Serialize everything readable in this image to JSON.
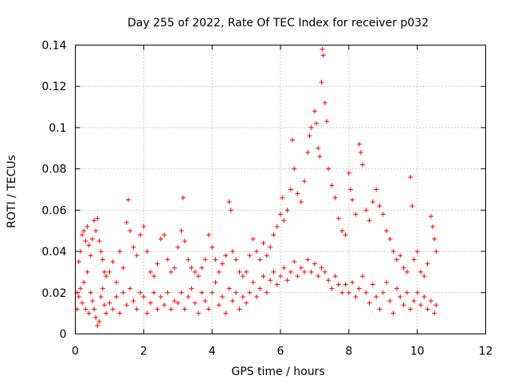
{
  "chart_data": {
    "type": "scatter",
    "title": "Day 255 of 2022, Rate Of TEC Index for receiver p032",
    "xlabel": "GPS time / hours",
    "ylabel": "ROTI / TECUs",
    "xlim": [
      0,
      12
    ],
    "ylim": [
      0,
      0.14
    ],
    "xticks": [
      0,
      2,
      4,
      6,
      8,
      10,
      12
    ],
    "yticks": [
      0,
      0.02,
      0.04,
      0.06,
      0.08,
      0.1,
      0.12,
      0.14
    ],
    "xtick_labels": [
      "0",
      "2",
      "4",
      "6",
      "8",
      "10",
      "12"
    ],
    "ytick_labels": [
      "0",
      "0.02",
      "0.04",
      "0.06",
      "0.08",
      "0.1",
      "0.12",
      "0.14"
    ],
    "grid": true,
    "marker": "+",
    "color": "#ff0000",
    "series": [
      {
        "name": "p032",
        "points": [
          [
            0.05,
            0.012
          ],
          [
            0.1,
            0.035
          ],
          [
            0.15,
            0.04
          ],
          [
            0.2,
            0.048
          ],
          [
            0.25,
            0.05
          ],
          [
            0.3,
            0.045
          ],
          [
            0.35,
            0.052
          ],
          [
            0.4,
            0.043
          ],
          [
            0.45,
            0.038
          ],
          [
            0.5,
            0.046
          ],
          [
            0.55,
            0.055
          ],
          [
            0.6,
            0.05
          ],
          [
            0.65,
            0.056
          ],
          [
            0.7,
            0.045
          ],
          [
            0.75,
            0.04
          ],
          [
            0.8,
            0.036
          ],
          [
            0.85,
            0.03
          ],
          [
            0.9,
            0.028
          ],
          [
            0.05,
            0.02
          ],
          [
            0.1,
            0.018
          ],
          [
            0.15,
            0.022
          ],
          [
            0.2,
            0.015
          ],
          [
            0.25,
            0.025
          ],
          [
            0.3,
            0.012
          ],
          [
            0.35,
            0.03
          ],
          [
            0.4,
            0.01
          ],
          [
            0.45,
            0.02
          ],
          [
            0.5,
            0.016
          ],
          [
            0.55,
            0.012
          ],
          [
            0.6,
            0.008
          ],
          [
            0.65,
            0.004
          ],
          [
            0.7,
            0.006
          ],
          [
            0.75,
            0.018
          ],
          [
            0.8,
            0.022
          ],
          [
            0.85,
            0.014
          ],
          [
            0.9,
            0.01
          ],
          [
            1.0,
            0.03
          ],
          [
            1.1,
            0.035
          ],
          [
            1.2,
            0.025
          ],
          [
            1.3,
            0.04
          ],
          [
            1.4,
            0.032
          ],
          [
            1.5,
            0.054
          ],
          [
            1.55,
            0.065
          ],
          [
            1.6,
            0.05
          ],
          [
            1.7,
            0.042
          ],
          [
            1.8,
            0.038
          ],
          [
            1.9,
            0.048
          ],
          [
            2.0,
            0.052
          ],
          [
            2.1,
            0.04
          ],
          [
            2.2,
            0.03
          ],
          [
            2.3,
            0.028
          ],
          [
            2.4,
            0.034
          ],
          [
            2.5,
            0.046
          ],
          [
            2.6,
            0.048
          ],
          [
            2.7,
            0.036
          ],
          [
            2.8,
            0.03
          ],
          [
            2.9,
            0.032
          ],
          [
            1.0,
            0.015
          ],
          [
            1.1,
            0.012
          ],
          [
            1.2,
            0.018
          ],
          [
            1.3,
            0.01
          ],
          [
            1.4,
            0.02
          ],
          [
            1.5,
            0.014
          ],
          [
            1.6,
            0.022
          ],
          [
            1.7,
            0.016
          ],
          [
            1.8,
            0.012
          ],
          [
            1.9,
            0.02
          ],
          [
            2.0,
            0.018
          ],
          [
            2.1,
            0.01
          ],
          [
            2.2,
            0.015
          ],
          [
            2.3,
            0.02
          ],
          [
            2.4,
            0.012
          ],
          [
            2.5,
            0.018
          ],
          [
            2.6,
            0.014
          ],
          [
            2.7,
            0.02
          ],
          [
            2.8,
            0.012
          ],
          [
            2.9,
            0.016
          ],
          [
            3.0,
            0.042
          ],
          [
            3.1,
            0.05
          ],
          [
            3.15,
            0.066
          ],
          [
            3.2,
            0.045
          ],
          [
            3.3,
            0.036
          ],
          [
            3.4,
            0.032
          ],
          [
            3.5,
            0.03
          ],
          [
            3.6,
            0.028
          ],
          [
            3.7,
            0.032
          ],
          [
            3.8,
            0.036
          ],
          [
            3.9,
            0.048
          ],
          [
            4.0,
            0.042
          ],
          [
            4.1,
            0.036
          ],
          [
            4.2,
            0.03
          ],
          [
            4.3,
            0.034
          ],
          [
            4.4,
            0.038
          ],
          [
            4.5,
            0.064
          ],
          [
            4.55,
            0.06
          ],
          [
            4.6,
            0.04
          ],
          [
            4.7,
            0.036
          ],
          [
            4.8,
            0.03
          ],
          [
            4.9,
            0.028
          ],
          [
            3.0,
            0.015
          ],
          [
            3.1,
            0.02
          ],
          [
            3.2,
            0.012
          ],
          [
            3.3,
            0.018
          ],
          [
            3.4,
            0.022
          ],
          [
            3.5,
            0.015
          ],
          [
            3.6,
            0.01
          ],
          [
            3.7,
            0.02
          ],
          [
            3.8,
            0.016
          ],
          [
            3.9,
            0.012
          ],
          [
            4.0,
            0.02
          ],
          [
            4.1,
            0.025
          ],
          [
            4.2,
            0.014
          ],
          [
            4.3,
            0.018
          ],
          [
            4.4,
            0.01
          ],
          [
            4.5,
            0.022
          ],
          [
            4.6,
            0.016
          ],
          [
            4.7,
            0.02
          ],
          [
            4.8,
            0.012
          ],
          [
            4.9,
            0.018
          ],
          [
            5.0,
            0.03
          ],
          [
            5.1,
            0.038
          ],
          [
            5.2,
            0.046
          ],
          [
            5.3,
            0.04
          ],
          [
            5.4,
            0.036
          ],
          [
            5.5,
            0.044
          ],
          [
            5.6,
            0.038
          ],
          [
            5.7,
            0.042
          ],
          [
            5.8,
            0.048
          ],
          [
            5.9,
            0.052
          ],
          [
            6.0,
            0.058
          ],
          [
            6.05,
            0.066
          ],
          [
            6.1,
            0.055
          ],
          [
            6.2,
            0.06
          ],
          [
            6.3,
            0.07
          ],
          [
            6.35,
            0.094
          ],
          [
            6.4,
            0.08
          ],
          [
            6.5,
            0.068
          ],
          [
            6.6,
            0.064
          ],
          [
            6.7,
            0.074
          ],
          [
            6.8,
            0.088
          ],
          [
            6.85,
            0.096
          ],
          [
            6.9,
            0.1
          ],
          [
            7.0,
            0.108
          ],
          [
            7.05,
            0.102
          ],
          [
            7.1,
            0.09
          ],
          [
            7.15,
            0.086
          ],
          [
            7.2,
            0.122
          ],
          [
            7.22,
            0.138
          ],
          [
            7.25,
            0.135
          ],
          [
            7.3,
            0.112
          ],
          [
            7.35,
            0.103
          ],
          [
            7.4,
            0.08
          ],
          [
            7.5,
            0.072
          ],
          [
            7.6,
            0.066
          ],
          [
            7.7,
            0.056
          ],
          [
            7.8,
            0.05
          ],
          [
            7.9,
            0.048
          ],
          [
            5.0,
            0.015
          ],
          [
            5.1,
            0.02
          ],
          [
            5.2,
            0.025
          ],
          [
            5.3,
            0.018
          ],
          [
            5.4,
            0.022
          ],
          [
            5.5,
            0.028
          ],
          [
            5.6,
            0.02
          ],
          [
            5.7,
            0.026
          ],
          [
            5.8,
            0.03
          ],
          [
            5.9,
            0.024
          ],
          [
            6.0,
            0.028
          ],
          [
            6.1,
            0.032
          ],
          [
            6.2,
            0.026
          ],
          [
            6.3,
            0.03
          ],
          [
            6.4,
            0.035
          ],
          [
            6.5,
            0.028
          ],
          [
            6.6,
            0.032
          ],
          [
            6.7,
            0.03
          ],
          [
            6.8,
            0.036
          ],
          [
            6.9,
            0.03
          ],
          [
            7.0,
            0.034
          ],
          [
            7.1,
            0.028
          ],
          [
            7.2,
            0.032
          ],
          [
            7.3,
            0.03
          ],
          [
            7.4,
            0.026
          ],
          [
            7.5,
            0.022
          ],
          [
            7.6,
            0.028
          ],
          [
            7.7,
            0.024
          ],
          [
            7.8,
            0.02
          ],
          [
            7.9,
            0.024
          ],
          [
            8.0,
            0.078
          ],
          [
            8.05,
            0.07
          ],
          [
            8.1,
            0.065
          ],
          [
            8.2,
            0.058
          ],
          [
            8.3,
            0.092
          ],
          [
            8.35,
            0.088
          ],
          [
            8.4,
            0.082
          ],
          [
            8.5,
            0.06
          ],
          [
            8.6,
            0.055
          ],
          [
            8.7,
            0.064
          ],
          [
            8.8,
            0.07
          ],
          [
            8.9,
            0.062
          ],
          [
            9.0,
            0.058
          ],
          [
            9.1,
            0.05
          ],
          [
            9.2,
            0.046
          ],
          [
            9.3,
            0.04
          ],
          [
            9.4,
            0.036
          ],
          [
            9.5,
            0.038
          ],
          [
            9.6,
            0.032
          ],
          [
            9.7,
            0.03
          ],
          [
            9.8,
            0.076
          ],
          [
            9.85,
            0.062
          ],
          [
            9.9,
            0.036
          ],
          [
            10.0,
            0.04
          ],
          [
            10.1,
            0.03
          ],
          [
            10.2,
            0.028
          ],
          [
            10.3,
            0.034
          ],
          [
            10.4,
            0.057
          ],
          [
            10.45,
            0.052
          ],
          [
            10.5,
            0.046
          ],
          [
            10.55,
            0.04
          ],
          [
            8.0,
            0.02
          ],
          [
            8.1,
            0.025
          ],
          [
            8.2,
            0.018
          ],
          [
            8.3,
            0.022
          ],
          [
            8.4,
            0.028
          ],
          [
            8.5,
            0.02
          ],
          [
            8.6,
            0.015
          ],
          [
            8.7,
            0.024
          ],
          [
            8.8,
            0.018
          ],
          [
            8.9,
            0.012
          ],
          [
            9.0,
            0.02
          ],
          [
            9.1,
            0.025
          ],
          [
            9.2,
            0.016
          ],
          [
            9.3,
            0.01
          ],
          [
            9.4,
            0.022
          ],
          [
            9.5,
            0.018
          ],
          [
            9.6,
            0.014
          ],
          [
            9.7,
            0.02
          ],
          [
            9.8,
            0.012
          ],
          [
            9.9,
            0.016
          ],
          [
            10.0,
            0.02
          ],
          [
            10.1,
            0.014
          ],
          [
            10.2,
            0.018
          ],
          [
            10.3,
            0.012
          ],
          [
            10.4,
            0.016
          ],
          [
            10.5,
            0.01
          ],
          [
            10.55,
            0.014
          ]
        ]
      }
    ]
  }
}
